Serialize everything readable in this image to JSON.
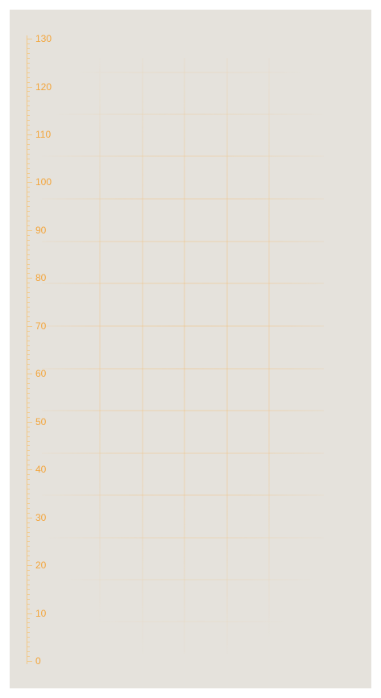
{
  "ruler": {
    "min": 0,
    "max": 130,
    "major_step": 10,
    "minor_per_major": 10,
    "labels": [
      "0",
      "10",
      "20",
      "30",
      "40",
      "50",
      "60",
      "70",
      "80",
      "90",
      "100",
      "110",
      "120",
      "130"
    ],
    "tick_color": "#f1c98a",
    "label_color": "#f3a53b"
  },
  "background": {
    "panel_color": "#e5e2dc",
    "grid_color": "#f3b867"
  }
}
